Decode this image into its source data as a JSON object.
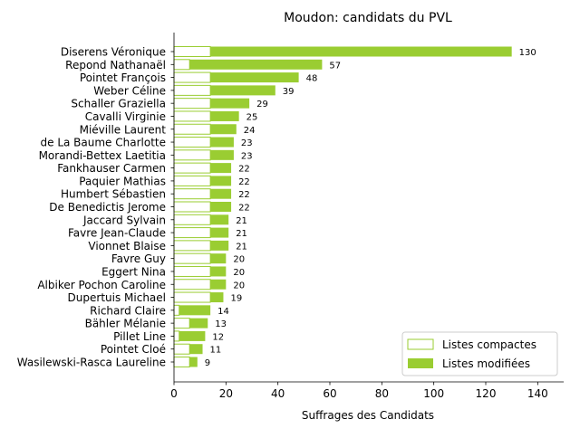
{
  "chart_data": {
    "type": "bar",
    "orientation": "horizontal",
    "stacked": true,
    "title": "Moudon: candidats du PVL",
    "xlabel": "Suffrages des Candidats",
    "ylabel": "",
    "xlim": [
      0,
      150
    ],
    "xticks": [
      0,
      20,
      40,
      60,
      80,
      100,
      120,
      140
    ],
    "grid": false,
    "legend_position": "bottom-right",
    "colors": {
      "modified": "#9acd32",
      "compact_edge": "#9acd32",
      "compact_fill": "#ffffff"
    },
    "categories": [
      "Diserens Véronique",
      "Repond Nathanaël",
      "Pointet François",
      "Weber Céline",
      "Schaller Graziella",
      "Cavalli Virginie",
      "Miéville Laurent",
      "de La Baume Charlotte",
      "Morandi-Bettex Laetitia",
      "Fankhauser Carmen",
      "Paquier Mathias",
      "Humbert Sébastien",
      "De Benedictis Jerome",
      "Jaccard Sylvain",
      "Favre Jean-Claude",
      "Vionnet Blaise",
      "Favre Guy",
      "Eggert Nina",
      "Albiker Pochon Caroline",
      "Dupertuis Michael",
      "Richard Claire",
      "Bähler Mélanie",
      "Pillet Line",
      "Pointet Cloé",
      "Wasilewski-Rasca Laureline"
    ],
    "totals": [
      130,
      57,
      48,
      39,
      29,
      25,
      24,
      23,
      23,
      22,
      22,
      22,
      22,
      21,
      21,
      21,
      20,
      20,
      20,
      19,
      14,
      13,
      12,
      11,
      9
    ],
    "series": [
      {
        "name": "Listes compactes",
        "values": [
          14,
          6,
          14,
          14,
          14,
          14,
          14,
          14,
          14,
          14,
          14,
          14,
          14,
          14,
          14,
          14,
          14,
          14,
          14,
          14,
          2,
          6,
          2,
          6,
          6
        ]
      },
      {
        "name": "Listes modifiées",
        "values": [
          116,
          51,
          34,
          25,
          15,
          11,
          10,
          9,
          9,
          8,
          8,
          8,
          8,
          7,
          7,
          7,
          6,
          6,
          6,
          5,
          12,
          7,
          10,
          5,
          3
        ]
      }
    ]
  }
}
